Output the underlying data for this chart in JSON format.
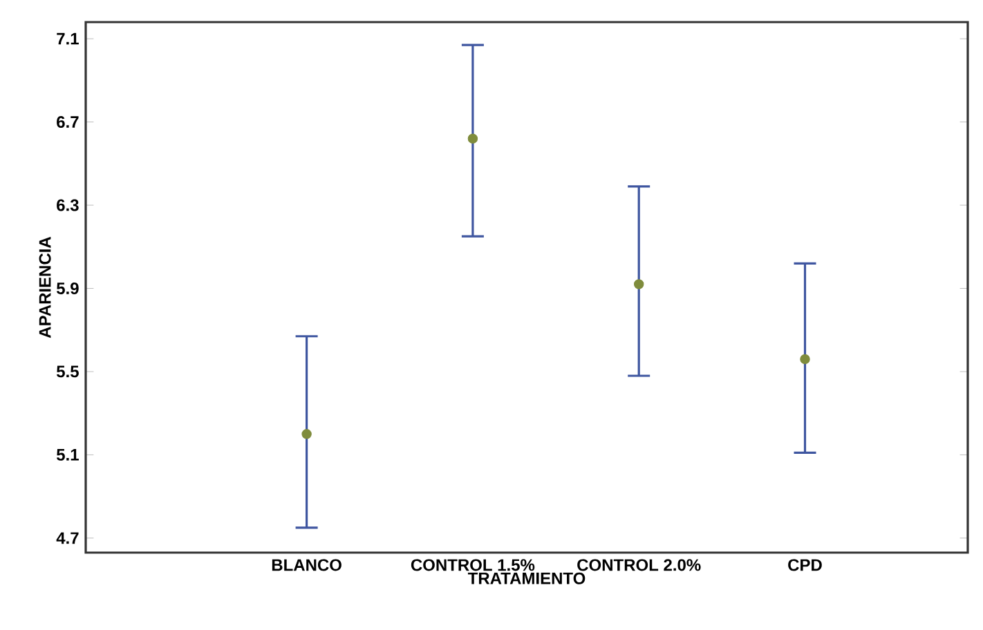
{
  "chart_data": {
    "type": "scatter",
    "xlabel": "TRATAMIENTO",
    "ylabel": "APARIENCIA",
    "categories": [
      "BLANCO",
      "CONTROL 1.5%",
      "CONTROL 2.0%",
      "CPD"
    ],
    "series": [
      {
        "color": "#7f8c3c",
        "values": [
          5.2,
          6.62,
          5.92,
          5.56
        ],
        "errors": [
          [
            4.75,
            5.67
          ],
          [
            6.15,
            7.07
          ],
          [
            5.48,
            6.39
          ],
          [
            5.11,
            6.02
          ]
        ]
      }
    ],
    "ylim": [
      4.63,
      7.18
    ],
    "yticks": [
      {
        "value": 4.7,
        "label": "4.7"
      },
      {
        "value": 5.1,
        "label": "5.1"
      },
      {
        "value": 5.5,
        "label": "5.5"
      },
      {
        "value": 5.9,
        "label": "5.9"
      },
      {
        "value": 6.3,
        "label": "6.3"
      },
      {
        "value": 6.7,
        "label": "6.7"
      },
      {
        "value": 7.1,
        "label": "7.1"
      }
    ],
    "marker": "circle",
    "grid": false
  }
}
